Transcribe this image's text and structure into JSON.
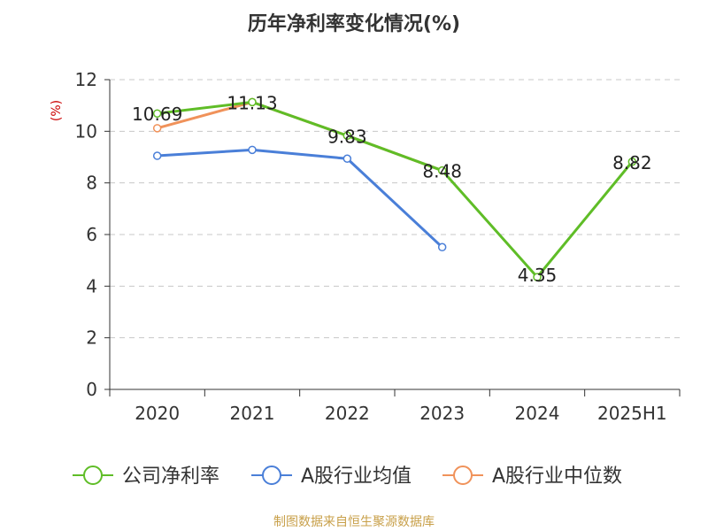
{
  "chart_data": {
    "type": "line",
    "title": "历年净利率变化情况(%)",
    "ylabel": "(%)",
    "xlabel": "",
    "categories": [
      "2020",
      "2021",
      "2022",
      "2023",
      "2024",
      "2025H1"
    ],
    "ylim": [
      0,
      12
    ],
    "yticks": [
      0,
      2,
      4,
      6,
      8,
      10,
      12
    ],
    "grid": true,
    "legend_position": "bottom",
    "series": [
      {
        "name": "公司净利率",
        "color": "#5fbd27",
        "values": [
          10.69,
          11.13,
          9.83,
          8.48,
          4.35,
          8.82
        ],
        "labels": [
          "10.69",
          "11.13",
          "9.83",
          "8.48",
          "4.35",
          "8.82"
        ]
      },
      {
        "name": "A股行业均值",
        "color": "#4a7fd8",
        "values": [
          9.05,
          9.28,
          8.94,
          5.51,
          null,
          null
        ]
      },
      {
        "name": "A股行业中位数",
        "color": "#f0925a",
        "values": [
          10.12,
          11.13,
          9.83,
          8.48,
          null,
          null
        ]
      }
    ],
    "source": "制图数据来自恒生聚源数据库"
  }
}
